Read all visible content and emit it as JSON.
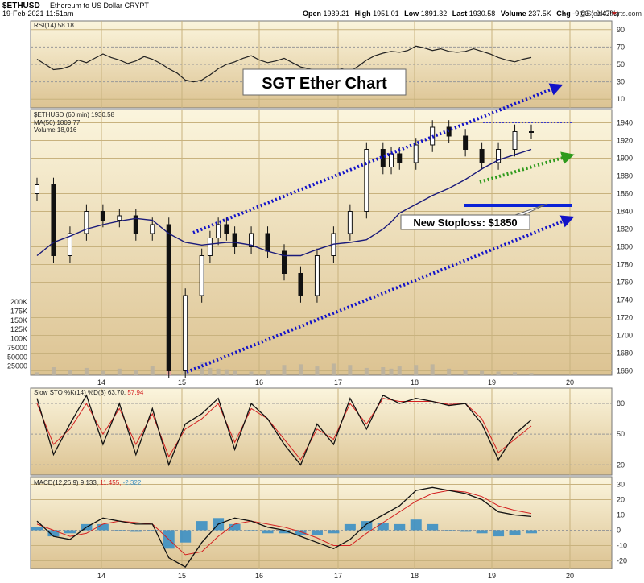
{
  "header": {
    "symbol": "$ETHUSD",
    "description": "Ethereum to US Dollar",
    "exchange": "CRYPT",
    "date": "19-Feb-2021 11:51am",
    "open_label": "Open",
    "open": "1939.21",
    "high_label": "High",
    "high": "1951.01",
    "low_label": "Low",
    "low": "1891.32",
    "last_label": "Last",
    "last": "1930.58",
    "volume_label": "Volume",
    "volume": "237.5K",
    "chg_label": "Chg",
    "chg": "-9.03 (-0.47%)",
    "watermark": "@StockCharts.com"
  },
  "colors": {
    "panel_bg_top": "#fbf5dd",
    "panel_bg_bottom": "#ddc496",
    "arrow_blue": "#1212c8",
    "arrow_green": "#2e9a1c",
    "stoploss_line": "#0a22d6",
    "ma_line": "#1a1a7a",
    "macd_hist": "#3b8fc4",
    "signal_red": "#d42020"
  },
  "annotations": {
    "title": "SGT Ether Chart",
    "stoploss": "New Stoploss: $1850"
  },
  "chart_data": [
    {
      "type": "line",
      "panel": "rsi",
      "title": "RSI(14) 58.18",
      "y_ticks": [
        90,
        70,
        50,
        30,
        10
      ],
      "ylim": [
        0,
        100
      ],
      "x": [
        0,
        2,
        4,
        6,
        8,
        10,
        12,
        14,
        16,
        18,
        20,
        22,
        24,
        26,
        28,
        30,
        32,
        34,
        36,
        38,
        40,
        42,
        44,
        46,
        48,
        50,
        52,
        54,
        56,
        58,
        60,
        62,
        64,
        66,
        68,
        70,
        72,
        74,
        76,
        78,
        80,
        82,
        84,
        86,
        88,
        90,
        92,
        94,
        96,
        98,
        100,
        102,
        104,
        106,
        108,
        110,
        112,
        114,
        116,
        118,
        120
      ],
      "values": [
        56,
        50,
        44,
        45,
        48,
        55,
        52,
        57,
        62,
        58,
        55,
        51,
        54,
        59,
        56,
        51,
        45,
        40,
        32,
        30,
        32,
        38,
        45,
        50,
        53,
        57,
        60,
        55,
        52,
        54,
        57,
        52,
        47,
        45,
        43,
        40,
        42,
        45,
        42,
        48,
        55,
        60,
        63,
        65,
        64,
        66,
        71,
        69,
        66,
        68,
        65,
        64,
        65,
        68,
        65,
        62,
        58,
        55,
        53,
        56,
        58
      ]
    },
    {
      "type": "candlestick",
      "panel": "price",
      "title": "$ETHUSD (60 min) 1930.58",
      "ma_label": "MA(50) 1809.77",
      "volume_label": "Volume 18,016",
      "x_ticks": [
        "14",
        "15",
        "16",
        "17",
        "18",
        "19",
        "20"
      ],
      "y_ticks": [
        1940,
        1920,
        1900,
        1880,
        1860,
        1840,
        1820,
        1800,
        1780,
        1760,
        1740,
        1720,
        1700,
        1680,
        1660
      ],
      "volume_ticks": [
        "200K",
        "175K",
        "150K",
        "125K",
        "100K",
        "75000",
        "50000",
        "25000"
      ],
      "ylim": [
        1655,
        1955
      ],
      "x": [
        0,
        4,
        8,
        12,
        16,
        20,
        24,
        28,
        32,
        36,
        40,
        42,
        44,
        46,
        48,
        52,
        56,
        60,
        64,
        68,
        72,
        76,
        80,
        84,
        86,
        88,
        92,
        96,
        100,
        104,
        108,
        112,
        116,
        120
      ],
      "close": [
        1870,
        1790,
        1815,
        1840,
        1830,
        1835,
        1815,
        1825,
        1660,
        1745,
        1790,
        1810,
        1825,
        1815,
        1800,
        1815,
        1795,
        1770,
        1745,
        1790,
        1815,
        1840,
        1910,
        1890,
        1905,
        1895,
        1915,
        1935,
        1925,
        1910,
        1895,
        1910,
        1930,
        1930
      ],
      "ma50": [
        1790,
        1805,
        1812,
        1820,
        1825,
        1829,
        1832,
        1830,
        1815,
        1805,
        1802,
        1803,
        1804,
        1805,
        1805,
        1802,
        1795,
        1790,
        1790,
        1797,
        1803,
        1805,
        1808,
        1820,
        1828,
        1838,
        1848,
        1858,
        1866,
        1876,
        1888,
        1898,
        1904,
        1910
      ],
      "volume": [
        8000,
        22000,
        15000,
        20000,
        12000,
        18000,
        14000,
        26000,
        95000,
        45000,
        36000,
        20000,
        18000,
        16000,
        12000,
        10000,
        14000,
        28000,
        30000,
        24000,
        32000,
        28000,
        20000,
        22000,
        18000,
        24000,
        28000,
        30000,
        18000,
        14000,
        12000,
        10000,
        8000,
        6000
      ]
    },
    {
      "type": "line",
      "panel": "stochastic",
      "title": "Slow STO %K(14) %D(3) 63.70,",
      "title_d": "57.94",
      "y_ticks": [
        80,
        50,
        20
      ],
      "ylim": [
        10,
        95
      ],
      "x": [
        0,
        4,
        8,
        12,
        16,
        20,
        24,
        28,
        32,
        36,
        40,
        44,
        48,
        52,
        56,
        60,
        64,
        68,
        72,
        76,
        80,
        84,
        88,
        92,
        96,
        100,
        104,
        108,
        112,
        116,
        120
      ],
      "k": [
        85,
        30,
        60,
        88,
        40,
        80,
        30,
        75,
        20,
        60,
        70,
        85,
        35,
        80,
        65,
        40,
        20,
        60,
        40,
        85,
        55,
        88,
        80,
        85,
        82,
        78,
        80,
        60,
        25,
        50,
        64
      ],
      "d": [
        80,
        40,
        55,
        80,
        50,
        75,
        40,
        70,
        28,
        55,
        65,
        80,
        42,
        75,
        65,
        45,
        25,
        55,
        45,
        80,
        60,
        85,
        82,
        82,
        82,
        79,
        80,
        65,
        32,
        45,
        58
      ]
    },
    {
      "type": "line",
      "panel": "macd",
      "title": "MACD(12,26,9) 9.133,",
      "title_signal": "11.455,",
      "title_hist": "-2.322",
      "y_ticks": [
        30,
        20,
        10,
        0,
        -10,
        -20
      ],
      "ylim": [
        -25,
        35
      ],
      "x": [
        0,
        4,
        8,
        12,
        16,
        20,
        24,
        28,
        32,
        36,
        40,
        44,
        48,
        52,
        56,
        60,
        64,
        68,
        72,
        76,
        80,
        84,
        88,
        92,
        96,
        100,
        104,
        108,
        112,
        116,
        120
      ],
      "macd": [
        6,
        -4,
        -6,
        2,
        8,
        6,
        4,
        4,
        -18,
        -24,
        -8,
        4,
        8,
        6,
        2,
        0,
        -4,
        -8,
        -12,
        -6,
        4,
        10,
        16,
        26,
        28,
        26,
        24,
        20,
        12,
        10,
        9
      ],
      "signal": [
        4,
        0,
        -4,
        -2,
        4,
        6,
        5,
        4,
        -6,
        -16,
        -14,
        -4,
        4,
        6,
        4,
        2,
        -1,
        -5,
        -10,
        -10,
        -2,
        5,
        12,
        19,
        24,
        26,
        25,
        22,
        16,
        13,
        11
      ],
      "hist": [
        2,
        -4,
        -2,
        4,
        4,
        0,
        -1,
        0,
        -12,
        -8,
        6,
        8,
        4,
        0,
        -2,
        -2,
        -3,
        -3,
        -2,
        4,
        6,
        5,
        4,
        7,
        4,
        0,
        -1,
        -2,
        -4,
        -3,
        -2
      ]
    }
  ]
}
